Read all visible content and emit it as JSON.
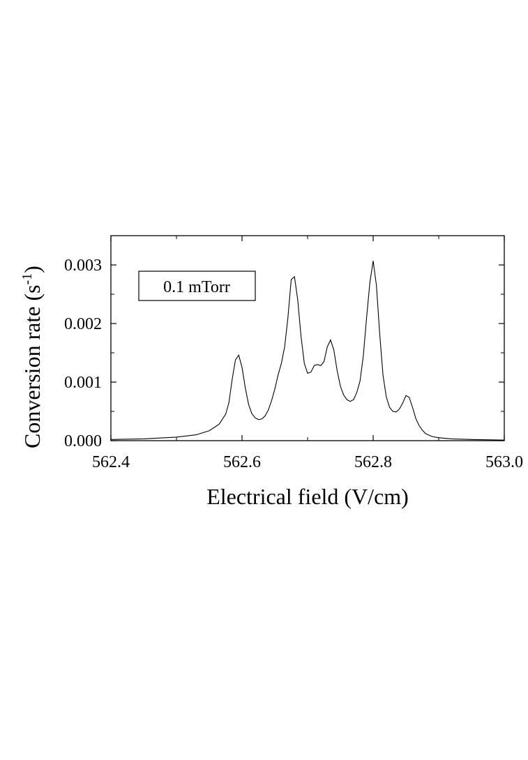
{
  "chart_data": {
    "type": "line",
    "xlabel": "Electrical field (V/cm)",
    "ylabel_main": "Conversion rate (s",
    "ylabel_sup": "-1",
    "ylabel_close": ")",
    "xlim": [
      562.4,
      563.0
    ],
    "ylim": [
      0.0,
      0.0035
    ],
    "x_ticks": [
      562.4,
      562.6,
      562.8,
      563.0
    ],
    "x_tick_labels": [
      "562.4",
      "562.6",
      "562.8",
      "563.0"
    ],
    "y_ticks": [
      0.0,
      0.001,
      0.002,
      0.003
    ],
    "y_tick_labels": [
      "0.000",
      "0.001",
      "0.002",
      "0.003"
    ],
    "grid": false,
    "legend_text": "0.1 mTorr",
    "legend_position": "top-left",
    "line_color": "#000000",
    "series": [
      {
        "x": [
          562.4,
          562.45,
          562.5,
          562.53,
          562.55,
          562.565,
          562.575,
          562.58,
          562.585,
          562.59,
          562.595,
          562.6,
          562.605,
          562.61,
          562.615,
          562.62,
          562.625,
          562.63,
          562.635,
          562.64,
          562.645,
          562.65,
          562.655,
          562.66,
          562.665,
          562.67,
          562.675,
          562.68,
          562.685,
          562.69,
          562.695,
          562.7,
          562.705,
          562.71,
          562.715,
          562.72,
          562.725,
          562.73,
          562.735,
          562.74,
          562.745,
          562.75,
          562.755,
          562.76,
          562.765,
          562.77,
          562.775,
          562.78,
          562.785,
          562.79,
          562.795,
          562.8,
          562.805,
          562.81,
          562.815,
          562.82,
          562.825,
          562.83,
          562.835,
          562.84,
          562.845,
          562.85,
          562.855,
          562.86,
          562.865,
          562.87,
          562.875,
          562.88,
          562.89,
          562.9,
          562.92,
          562.95,
          563.0
        ],
        "y": [
          2e-05,
          3e-05,
          6e-05,
          0.0001,
          0.00017,
          0.00028,
          0.00045,
          0.00065,
          0.00105,
          0.00138,
          0.00146,
          0.00125,
          0.0009,
          0.00062,
          0.00046,
          0.00039,
          0.00036,
          0.00037,
          0.00042,
          0.00052,
          0.00068,
          0.00088,
          0.00112,
          0.00132,
          0.0016,
          0.0021,
          0.00275,
          0.0028,
          0.0024,
          0.00178,
          0.00132,
          0.00115,
          0.00117,
          0.00128,
          0.0013,
          0.00128,
          0.00135,
          0.0016,
          0.00172,
          0.00155,
          0.0012,
          0.00093,
          0.00078,
          0.0007,
          0.00067,
          0.0007,
          0.00082,
          0.00102,
          0.00145,
          0.0021,
          0.0027,
          0.00307,
          0.00265,
          0.00182,
          0.00112,
          0.00075,
          0.00057,
          0.0005,
          0.00049,
          0.00054,
          0.00064,
          0.00077,
          0.00074,
          0.00057,
          0.00038,
          0.00026,
          0.00018,
          0.00012,
          7e-05,
          5e-05,
          3e-05,
          2e-05,
          1e-05
        ]
      }
    ]
  }
}
